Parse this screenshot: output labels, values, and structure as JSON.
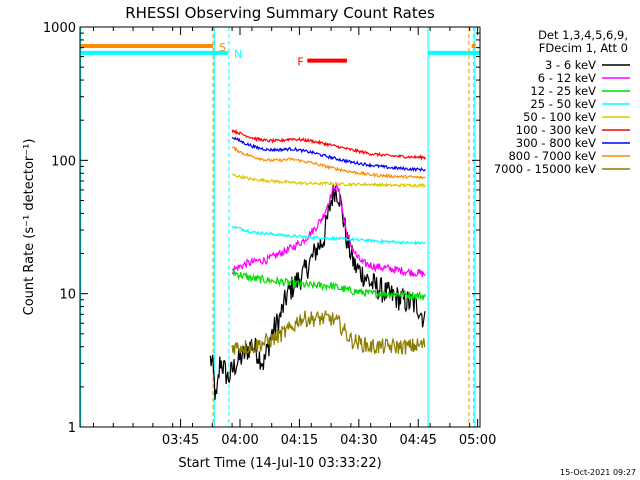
{
  "chart_data": {
    "type": "line",
    "title": "RHESSI Observing Summary Count Rates",
    "xlabel": "Start Time (14-Jul-10 03:33:22)",
    "ylabel": "Count Rate (s⁻¹ detector⁻¹)",
    "y_scale": "log",
    "ylim": [
      1,
      1000
    ],
    "xlim_min": [
      -13.4,
      87.6
    ],
    "x_ticks": [
      {
        "t": 12,
        "label": "03:45"
      },
      {
        "t": 27,
        "label": "04:00"
      },
      {
        "t": 42,
        "label": "04:15"
      },
      {
        "t": 57,
        "label": "04:30"
      },
      {
        "t": 72,
        "label": "04:45"
      },
      {
        "t": 87,
        "label": "05:00"
      }
    ],
    "y_ticks": [
      {
        "v": 1,
        "label": "1"
      },
      {
        "v": 10,
        "label": "10"
      },
      {
        "v": 100,
        "label": "100"
      },
      {
        "v": 1000,
        "label": "1000"
      }
    ],
    "legend_header": [
      "Det 1,3,4,5,6,9,",
      "FDecim 1, Att 0"
    ],
    "series": [
      {
        "name": "3 - 6 keV",
        "color": "#000000",
        "x": [
          19.5,
          20,
          21,
          22,
          24,
          26,
          28,
          30,
          31.5,
          33,
          35,
          37,
          39,
          41,
          43,
          45,
          46.5,
          48,
          49,
          50,
          51,
          52,
          53,
          54,
          56,
          58,
          60,
          62,
          64,
          66,
          68,
          70,
          72,
          73.9
        ],
        "y": [
          3.2,
          3.0,
          1.5,
          3.2,
          2.3,
          3.0,
          3.5,
          4.2,
          3.6,
          3.0,
          5.0,
          6.5,
          10.0,
          12.0,
          14.0,
          18.0,
          22.0,
          25.0,
          35.0,
          50.0,
          62.0,
          55.0,
          38.0,
          25.0,
          16.0,
          14.0,
          12.0,
          11.0,
          10.0,
          9.5,
          9.0,
          8.5,
          8.0,
          6.0
        ]
      },
      {
        "name": "6 - 12 keV",
        "color": "#ff00ff",
        "x": [
          25,
          28,
          31,
          34,
          37,
          40,
          43,
          46,
          48,
          49.5,
          51,
          52,
          53,
          54,
          55,
          56.5,
          58,
          61,
          64,
          67,
          70,
          74
        ],
        "y": [
          15.0,
          16.5,
          17.5,
          18.0,
          20.0,
          22.0,
          25.0,
          31.0,
          38.0,
          50.0,
          65.0,
          58.0,
          40.0,
          28.0,
          23.0,
          19.0,
          17.0,
          16.0,
          15.5,
          15.0,
          14.5,
          14.0
        ]
      },
      {
        "name": "12 - 25 keV",
        "color": "#00dd00",
        "x": [
          25,
          30,
          35,
          40,
          45,
          50,
          52,
          55,
          60,
          65,
          70,
          74
        ],
        "y": [
          14.5,
          13.0,
          12.5,
          12.0,
          11.5,
          11.5,
          11.0,
          10.5,
          10.0,
          10.0,
          9.8,
          9.5
        ]
      },
      {
        "name": "25 - 50 keV",
        "color": "#00ffff",
        "x": [
          25,
          30,
          35,
          40,
          45,
          50,
          55,
          60,
          65,
          70,
          74
        ],
        "y": [
          32.0,
          29.0,
          28.0,
          27.0,
          26.5,
          26.0,
          25.5,
          25.0,
          24.5,
          24.0,
          24.0
        ]
      },
      {
        "name": "50 - 100 keV",
        "color": "#ddc800",
        "x": [
          25,
          30,
          35,
          40,
          45,
          50,
          55,
          60,
          65,
          70,
          74
        ],
        "y": [
          78.0,
          72.0,
          70.0,
          68.0,
          67.0,
          67.0,
          66.0,
          66.0,
          65.0,
          65.0,
          65.0
        ]
      },
      {
        "name": "100 - 300 keV",
        "color": "#ff0000",
        "x": [
          25,
          28,
          31,
          34,
          37,
          40,
          45,
          50,
          55,
          60,
          65,
          70,
          74
        ],
        "y": [
          168.0,
          155.0,
          145.0,
          140.0,
          140.0,
          145.0,
          140.0,
          130.0,
          120.0,
          112.0,
          108.0,
          106.0,
          105.0
        ]
      },
      {
        "name": "300 - 800 keV",
        "color": "#0000ff",
        "x": [
          25,
          28,
          31,
          34,
          37,
          40,
          45,
          50,
          55,
          60,
          65,
          70,
          74
        ],
        "y": [
          150.0,
          135.0,
          125.0,
          120.0,
          120.0,
          122.0,
          115.0,
          105.0,
          97.0,
          92.0,
          88.0,
          86.0,
          85.0
        ]
      },
      {
        "name": "800 - 7000 keV",
        "color": "#ff8c00",
        "x": [
          25,
          28,
          31,
          34,
          37,
          40,
          45,
          50,
          55,
          60,
          65,
          70,
          74
        ],
        "y": [
          125.0,
          112.0,
          105.0,
          100.0,
          100.0,
          102.0,
          96.0,
          88.0,
          82.0,
          78.0,
          76.0,
          75.0,
          74.0
        ]
      },
      {
        "name": "7000 - 15000 keV",
        "color": "#8b7d00",
        "x": [
          25,
          30,
          35,
          40,
          42,
          45,
          50,
          52,
          55,
          60,
          65,
          70,
          74
        ],
        "y": [
          4.0,
          4.0,
          4.5,
          5.5,
          6.5,
          6.5,
          6.5,
          6.0,
          4.5,
          4.0,
          4.0,
          4.0,
          4.2
        ]
      }
    ],
    "markers": {
      "vlines_cyan": [
        -13.2,
        20.5,
        74.5,
        86.3
      ],
      "vlines_cyan_dashed": [
        24.2,
        86.0
      ],
      "vlines_orange_dashed": [
        20.2,
        84.8
      ],
      "saa_bar": {
        "color": "#ff8c00",
        "x0": -13.2,
        "x1": 20.2,
        "y": 720,
        "label": "S"
      },
      "night_bar": {
        "color": "#00ffff",
        "x0": -13.2,
        "x1": 24.0,
        "y": 640,
        "label": "N"
      },
      "flare_bar": {
        "color": "#ff0000",
        "x0": 44.0,
        "x1": 54.0,
        "y": 560,
        "label": "F"
      },
      "right_bars": [
        {
          "color": "#00ffff",
          "x0": 74.5,
          "x1": 87.5,
          "y": 640
        },
        {
          "color": "#ff8c00",
          "x0": 85.5,
          "x1": 86.5,
          "y": 720
        }
      ]
    }
  },
  "footer_date": "15-Oct-2021 09:27"
}
